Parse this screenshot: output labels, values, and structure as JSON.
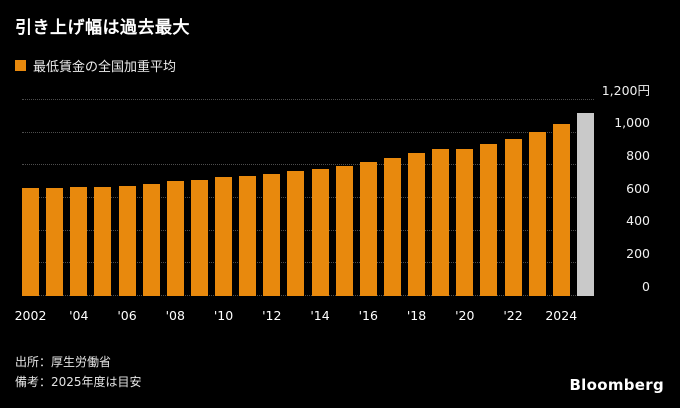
{
  "header": {
    "title": "引き上げ幅は過去最大",
    "legend_label": "最低賃金の全国加重平均"
  },
  "chart_data": {
    "type": "bar",
    "title": "引き上げ幅は過去最大",
    "legend": "最低賃金の全国加重平均",
    "unit": "円",
    "x": [
      2002,
      2003,
      2004,
      2005,
      2006,
      2007,
      2008,
      2009,
      2010,
      2011,
      2012,
      2013,
      2014,
      2015,
      2016,
      2017,
      2018,
      2019,
      2020,
      2021,
      2022,
      2023,
      2024,
      2025
    ],
    "values": [
      663,
      664,
      665,
      668,
      673,
      687,
      703,
      713,
      730,
      737,
      749,
      764,
      780,
      798,
      823,
      848,
      874,
      901,
      902,
      930,
      961,
      1004,
      1055,
      1118
    ],
    "highlight_index": 23,
    "highlight_note": "2025年度は目安",
    "bar_colors": {
      "default": "#E8890D",
      "highlight": "#C9C9C9"
    },
    "ylim": [
      0,
      1200
    ],
    "yticks": [
      0,
      200,
      400,
      600,
      800,
      1000,
      1200
    ],
    "ytick_labels": [
      "0",
      "200",
      "400",
      "600",
      "800",
      "1,000",
      "1,200円"
    ],
    "xtick_labels": [
      "2002",
      "'04",
      "'06",
      "'08",
      "'10",
      "'12",
      "'14",
      "'16",
      "'18",
      "'20",
      "'22",
      "2024"
    ],
    "grid": "horizontal-dotted",
    "legend_position": "top-left",
    "yaxis_position": "right"
  },
  "footer": {
    "source": "出所：厚生労働省",
    "note": "備考：2025年度は目安",
    "brand": "Bloomberg"
  }
}
